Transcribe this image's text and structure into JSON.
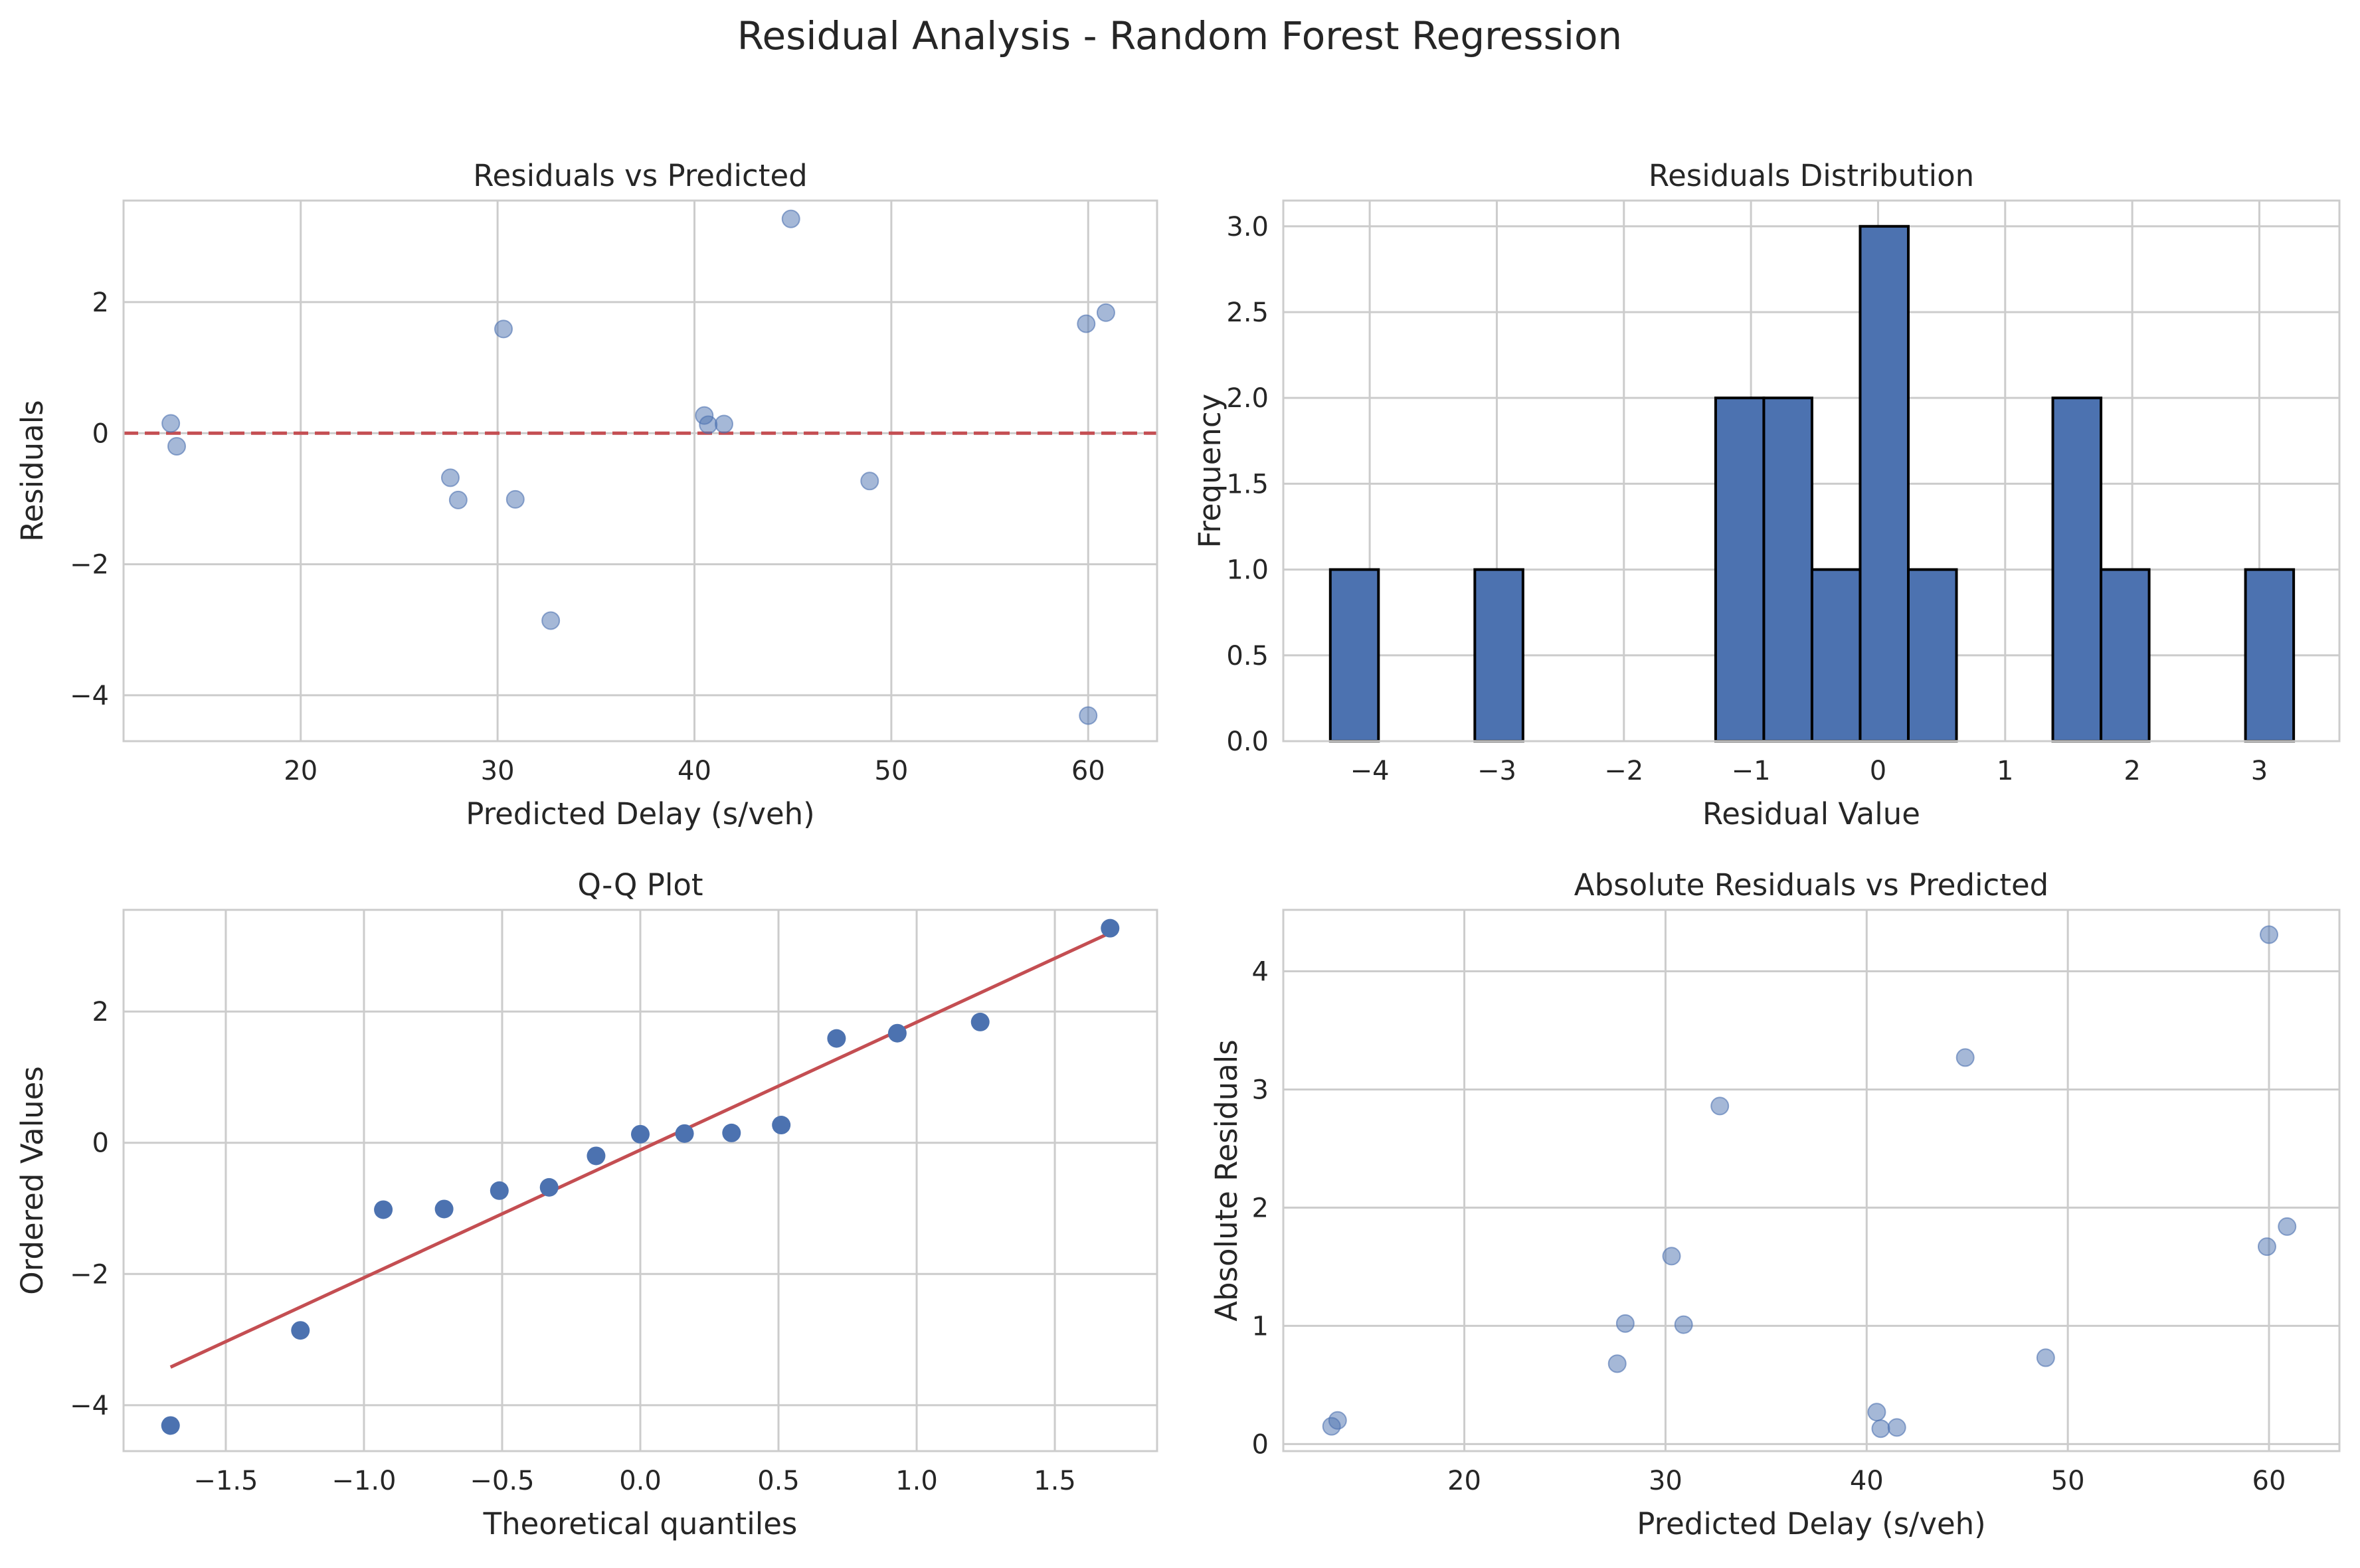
{
  "suptitle": "Residual Analysis - Random Forest Regression",
  "chart_data": [
    {
      "type": "scatter",
      "title": "Residuals vs Predicted",
      "xlabel": "Predicted Delay (s/veh)",
      "ylabel": "Residuals",
      "xlim": [
        11,
        63.5
      ],
      "ylim": [
        -4.7,
        3.55
      ],
      "xticks": [
        20,
        30,
        40,
        50,
        60
      ],
      "yticks": [
        -4,
        -2,
        0,
        2
      ],
      "grid": true,
      "point_color": "#4c72b0",
      "point_alpha": 0.5,
      "reference_line": {
        "y": 0,
        "color": "#c44e52",
        "style": "dashed"
      },
      "points": [
        {
          "x": 13.4,
          "y": 0.15
        },
        {
          "x": 13.7,
          "y": -0.2
        },
        {
          "x": 27.6,
          "y": -0.68
        },
        {
          "x": 28.0,
          "y": -1.02
        },
        {
          "x": 30.3,
          "y": 1.59
        },
        {
          "x": 30.9,
          "y": -1.01
        },
        {
          "x": 32.7,
          "y": -2.86
        },
        {
          "x": 40.5,
          "y": 0.27
        },
        {
          "x": 40.7,
          "y": 0.13
        },
        {
          "x": 41.5,
          "y": 0.14
        },
        {
          "x": 44.9,
          "y": 3.27
        },
        {
          "x": 48.9,
          "y": -0.73
        },
        {
          "x": 59.9,
          "y": 1.67
        },
        {
          "x": 60.0,
          "y": -4.31
        },
        {
          "x": 60.9,
          "y": 1.84
        }
      ]
    },
    {
      "type": "bar",
      "title": "Residuals Distribution",
      "xlabel": "Residual Value",
      "ylabel": "Frequency",
      "xlim": [
        -4.68,
        3.63
      ],
      "ylim": [
        0,
        3.15
      ],
      "xticks": [
        -4,
        -3,
        -2,
        -1,
        0,
        1,
        2,
        3
      ],
      "yticks": [
        0.0,
        0.5,
        1.0,
        1.5,
        2.0,
        2.5,
        3.0
      ],
      "grid": true,
      "bar_color": "#4c72b0",
      "edge_color": "#000000",
      "bin_start": -4.31,
      "bin_width": 0.379,
      "counts": [
        1,
        0,
        0,
        1,
        0,
        0,
        0,
        0,
        2,
        2,
        1,
        3,
        1,
        0,
        0,
        2,
        1,
        0,
        0,
        1
      ]
    },
    {
      "type": "scatter",
      "title": "Q-Q Plot",
      "xlabel": "Theoretical quantiles",
      "ylabel": "Ordered Values",
      "xlim": [
        -1.87,
        1.87
      ],
      "ylim": [
        -4.7,
        3.55
      ],
      "xticks": [
        -1.5,
        -1.0,
        -0.5,
        0.0,
        0.5,
        1.0,
        1.5
      ],
      "yticks": [
        -4,
        -2,
        0,
        2
      ],
      "grid": true,
      "point_color": "#4c72b0",
      "point_alpha": 1,
      "fit_line": {
        "x": [
          -1.7,
          1.7
        ],
        "y": [
          -3.42,
          3.2
        ],
        "color": "#c44e52"
      },
      "points": [
        {
          "x": -1.7,
          "y": -4.31
        },
        {
          "x": -1.23,
          "y": -2.86
        },
        {
          "x": -0.93,
          "y": -1.02
        },
        {
          "x": -0.71,
          "y": -1.01
        },
        {
          "x": -0.51,
          "y": -0.73
        },
        {
          "x": -0.33,
          "y": -0.68
        },
        {
          "x": -0.16,
          "y": -0.2
        },
        {
          "x": 0.0,
          "y": 0.13
        },
        {
          "x": 0.16,
          "y": 0.14
        },
        {
          "x": 0.33,
          "y": 0.15
        },
        {
          "x": 0.51,
          "y": 0.27
        },
        {
          "x": 0.71,
          "y": 1.59
        },
        {
          "x": 0.93,
          "y": 1.67
        },
        {
          "x": 1.23,
          "y": 1.84
        },
        {
          "x": 1.7,
          "y": 3.27
        }
      ]
    },
    {
      "type": "scatter",
      "title": "Absolute Residuals vs Predicted",
      "xlabel": "Predicted Delay (s/veh)",
      "ylabel": "Absolute Residuals",
      "xlim": [
        11,
        63.5
      ],
      "ylim": [
        -0.06,
        4.52
      ],
      "xticks": [
        20,
        30,
        40,
        50,
        60
      ],
      "yticks": [
        0,
        1,
        2,
        3,
        4
      ],
      "grid": true,
      "point_color": "#4c72b0",
      "point_alpha": 0.5,
      "points": [
        {
          "x": 13.4,
          "y": 0.15
        },
        {
          "x": 13.7,
          "y": 0.2
        },
        {
          "x": 27.6,
          "y": 0.68
        },
        {
          "x": 28.0,
          "y": 1.02
        },
        {
          "x": 30.3,
          "y": 1.59
        },
        {
          "x": 30.9,
          "y": 1.01
        },
        {
          "x": 32.7,
          "y": 2.86
        },
        {
          "x": 40.5,
          "y": 0.27
        },
        {
          "x": 40.7,
          "y": 0.13
        },
        {
          "x": 41.5,
          "y": 0.14
        },
        {
          "x": 44.9,
          "y": 3.27
        },
        {
          "x": 48.9,
          "y": 0.73
        },
        {
          "x": 59.9,
          "y": 1.67
        },
        {
          "x": 60.0,
          "y": 4.31
        },
        {
          "x": 60.9,
          "y": 1.84
        }
      ]
    }
  ]
}
